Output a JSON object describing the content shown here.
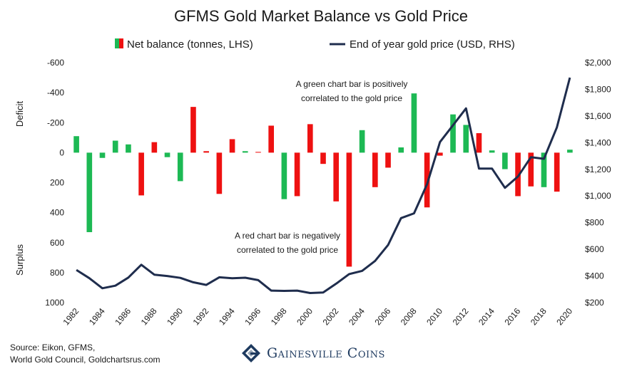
{
  "chart_data": {
    "type": "bar+line",
    "title": "GFMS Gold Market Balance vs Gold Price",
    "legend": {
      "bar_label": "Net balance (tonnes, LHS)",
      "line_label": "End of year gold price (USD, RHS)",
      "placement": "top-center"
    },
    "years": [
      1982,
      1983,
      1984,
      1985,
      1986,
      1987,
      1988,
      1989,
      1990,
      1991,
      1992,
      1993,
      1994,
      1995,
      1996,
      1997,
      1998,
      1999,
      2000,
      2001,
      2002,
      2003,
      2004,
      2005,
      2006,
      2007,
      2008,
      2009,
      2010,
      2011,
      2012,
      2013,
      2014,
      2015,
      2016,
      2017,
      2018,
      2019,
      2020
    ],
    "x_tick_labels": [
      "1982",
      "1984",
      "1986",
      "1988",
      "1990",
      "1992",
      "1994",
      "1996",
      "1998",
      "2000",
      "2002",
      "2004",
      "2006",
      "2008",
      "2010",
      "2012",
      "2014",
      "2016",
      "2018",
      "2020"
    ],
    "net_balance": [
      -110,
      530,
      35,
      -80,
      -55,
      285,
      -70,
      30,
      190,
      -305,
      -10,
      275,
      -90,
      -10,
      -5,
      -180,
      310,
      290,
      -190,
      75,
      325,
      760,
      -150,
      230,
      100,
      -35,
      -395,
      365,
      20,
      -255,
      -185,
      -130,
      -15,
      110,
      290,
      225,
      230,
      260,
      -20
    ],
    "bar_colors": [
      "green",
      "green",
      "green",
      "green",
      "green",
      "red",
      "red",
      "green",
      "green",
      "red",
      "red",
      "red",
      "red",
      "green",
      "red",
      "red",
      "green",
      "red",
      "red",
      "red",
      "red",
      "red",
      "green",
      "red",
      "red",
      "green",
      "green",
      "red",
      "red",
      "green",
      "green",
      "red",
      "green",
      "green",
      "red",
      "red",
      "green",
      "red",
      "green"
    ],
    "colors": {
      "green": "#1db954",
      "red": "#ee1111",
      "line": "#1f2d4d"
    },
    "gold_price": [
      445,
      383,
      308,
      327,
      388,
      484,
      410,
      400,
      386,
      353,
      333,
      390,
      383,
      387,
      369,
      290,
      288,
      290,
      272,
      276,
      342,
      414,
      438,
      513,
      632,
      834,
      870,
      1087,
      1405,
      1531,
      1657,
      1205,
      1206,
      1061,
      1146,
      1291,
      1279,
      1515,
      1888
    ],
    "left_axis": {
      "title_top": "Deficit",
      "title_bottom": "Surplus",
      "range": [
        -600,
        1000
      ],
      "inverted": true,
      "ticks": [
        -600,
        -400,
        -200,
        0,
        200,
        400,
        600,
        800,
        1000
      ],
      "tick_labels": [
        "-600",
        "-400",
        "-200",
        "0",
        "200",
        "400",
        "600",
        "800",
        "1000"
      ]
    },
    "right_axis": {
      "range": [
        200,
        2000
      ],
      "ticks": [
        200,
        400,
        600,
        800,
        1000,
        1200,
        1400,
        1600,
        1800,
        2000
      ],
      "tick_labels": [
        "$200",
        "$400",
        "$600",
        "$800",
        "$1,000",
        "$1,200",
        "$1,400",
        "$1,600",
        "$1,800",
        "$2,000"
      ]
    },
    "annotations": [
      {
        "lines": [
          "A green chart bar is positively",
          "correlated to the gold price"
        ]
      },
      {
        "lines": [
          "A red chart bar is negatively",
          "correlated to  the gold price"
        ]
      }
    ],
    "grid": false
  },
  "footer": {
    "source_line1": "Source: Eikon, GFMS,",
    "source_line2": "World Gold Council, Goldchartsrus.com",
    "logo_text": "Gainesville Coins",
    "logo_icon": "gainesville-coins-logo-icon"
  }
}
